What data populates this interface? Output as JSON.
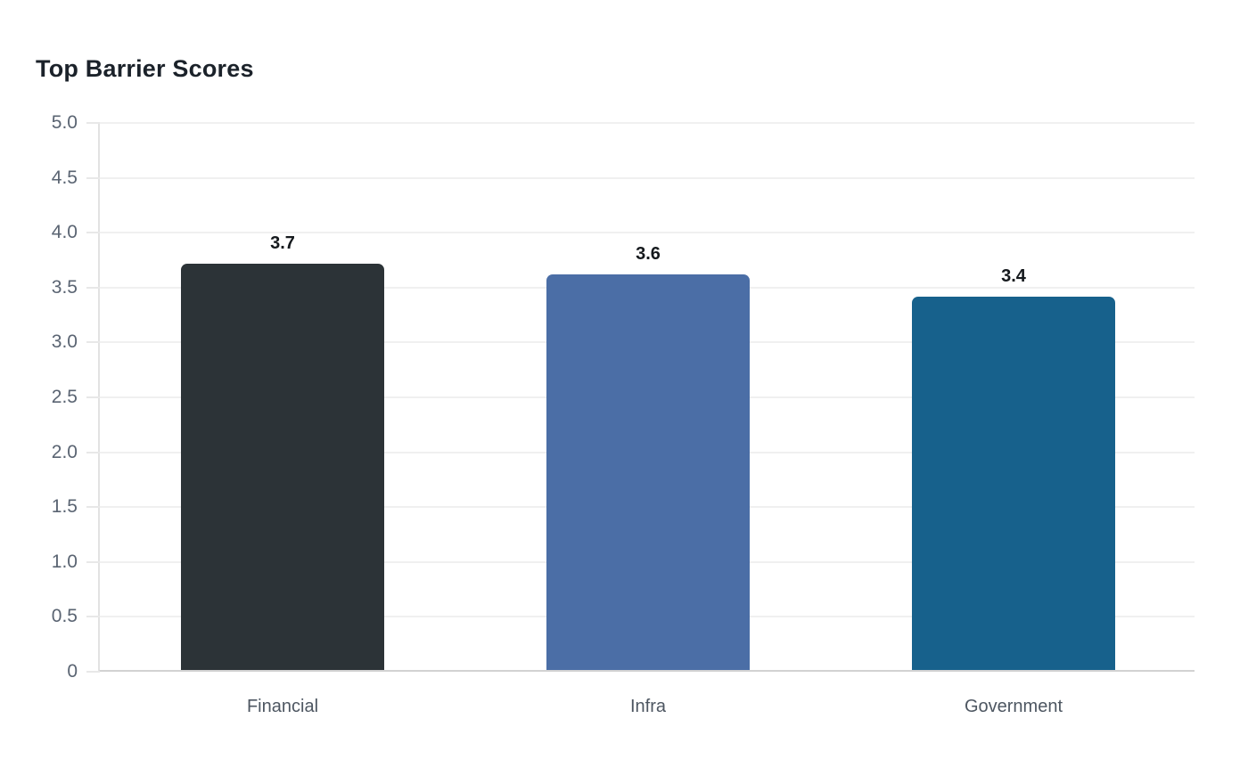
{
  "page": {
    "background": "#ffffff"
  },
  "chart_data": {
    "type": "bar",
    "title": "Top Barrier Scores",
    "categories": [
      "Financial",
      "Infra",
      "Government"
    ],
    "values": [
      3.7,
      3.6,
      3.4
    ],
    "value_labels": [
      "3.7",
      "3.6",
      "3.4"
    ],
    "bar_colors": [
      "#2c3337",
      "#4b6ea6",
      "#17618c"
    ],
    "xlabel": "",
    "ylabel": "",
    "ylim": [
      0,
      5
    ],
    "yticks": [
      {
        "value": 0,
        "label": "0"
      },
      {
        "value": 0.5,
        "label": "0.5"
      },
      {
        "value": 1,
        "label": "1.0"
      },
      {
        "value": 1.5,
        "label": "1.5"
      },
      {
        "value": 2,
        "label": "2.0"
      },
      {
        "value": 2.5,
        "label": "2.5"
      },
      {
        "value": 3,
        "label": "3.0"
      },
      {
        "value": 3.5,
        "label": "3.5"
      },
      {
        "value": 4,
        "label": "4.0"
      },
      {
        "value": 4.5,
        "label": "4.5"
      },
      {
        "value": 5,
        "label": "5.0"
      }
    ],
    "grid": "horizontal",
    "legend_position": "none"
  },
  "colors": {
    "title_text": "#1b222a",
    "y_axis_text": "#5a6472",
    "x_axis_text": "#4d5661",
    "value_label_text": "#15191d",
    "gridline": "#f0f0f0",
    "tick_mark": "#e8e8e8",
    "y_axis_line": "#e2e2e2",
    "x_axis_line": "#d2d2d2"
  }
}
